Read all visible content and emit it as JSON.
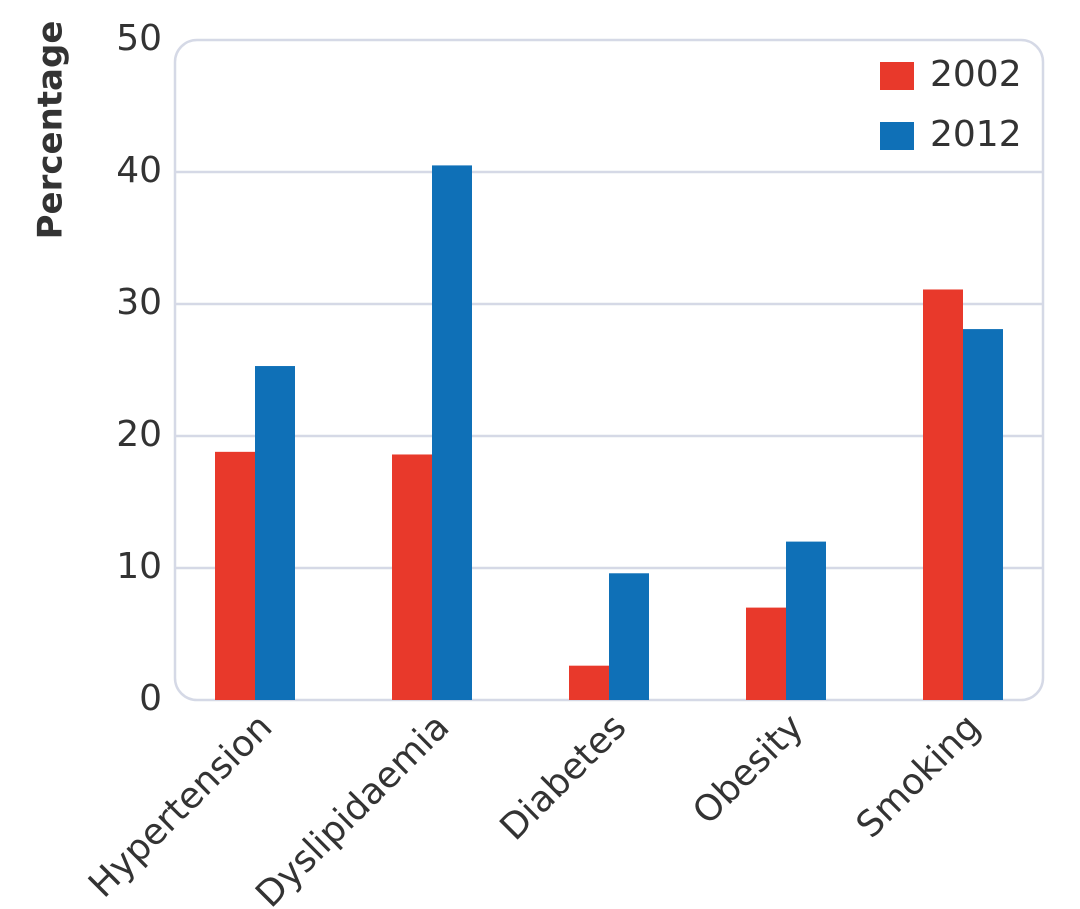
{
  "chart_data": {
    "type": "bar",
    "y_label": "Percentage",
    "categories": [
      "Hypertension",
      "Dyslipidaemia",
      "Diabetes",
      "Obesity",
      "Smoking"
    ],
    "series": [
      {
        "name": "2002",
        "color": "#e8392b",
        "values": [
          18.8,
          18.6,
          2.6,
          7.0,
          31.1
        ]
      },
      {
        "name": "2012",
        "color": "#0f70b7",
        "values": [
          25.3,
          40.5,
          9.6,
          12.0,
          28.1
        ]
      }
    ],
    "ylim": [
      0,
      50
    ],
    "yticks": [
      0,
      10,
      20,
      30,
      40,
      50
    ],
    "grid": true,
    "legend": "upper right"
  }
}
